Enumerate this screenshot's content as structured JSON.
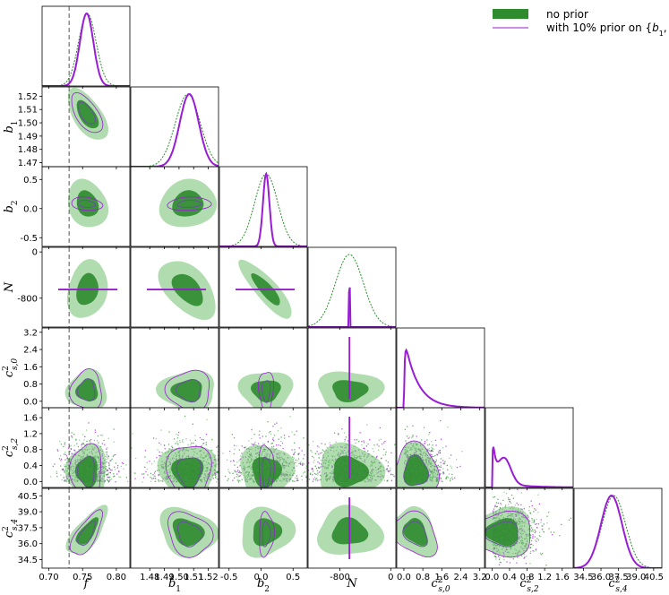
{
  "chart_data": {
    "type": "corner",
    "title": "",
    "parameters": [
      {
        "label": "f",
        "range": [
          0.69,
          0.82
        ],
        "ticks": [
          0.7,
          0.75,
          0.8
        ],
        "tick_labels": [
          "0.70",
          "0.75",
          "0.80"
        ],
        "mean": 0.757,
        "sd": 0.013,
        "prior_mean": 0.756,
        "prior_sd": 0.01
      },
      {
        "label": "b1",
        "range": [
          1.467,
          1.527
        ],
        "ticks": [
          1.47,
          1.48,
          1.49,
          1.5,
          1.51,
          1.52
        ],
        "x_tick_labels": [
          "1.48",
          "1.49",
          "1.50",
          "1.51",
          "1.52"
        ],
        "x_ticks": [
          1.48,
          1.49,
          1.5,
          1.51,
          1.52
        ],
        "y_ticks": [
          1.47,
          1.48,
          1.49,
          1.5,
          1.51,
          1.52
        ],
        "y_tick_labels": [
          "1.47",
          "1.48",
          "1.49",
          "1.50",
          "1.51",
          "1.52"
        ],
        "mean": 1.506,
        "sd": 0.0085,
        "prior_mean": 1.507,
        "prior_sd": 0.0065
      },
      {
        "label": "b2",
        "range": [
          -0.65,
          0.72
        ],
        "ticks": [
          -0.5,
          0.0,
          0.5
        ],
        "tick_labels": [
          "-0.5",
          "0.0",
          "0.5"
        ],
        "mean": 0.08,
        "sd": 0.18,
        "prior_mean": 0.08,
        "prior_sd": 0.05
      },
      {
        "label": "N",
        "range": [
          -1300,
          80
        ],
        "ticks": [
          -800,
          0
        ],
        "tick_labels": [
          "-800",
          "0"
        ],
        "mean": -650,
        "sd": 220,
        "prior_mean": -650,
        "prior_sd": 5
      },
      {
        "label": "c2s0",
        "range": [
          -0.3,
          3.4
        ],
        "ticks": [
          0.0,
          0.8,
          1.6,
          2.4,
          3.2
        ],
        "tick_labels": [
          "0.0",
          "0.8",
          "1.6",
          "2.4",
          "3.2"
        ],
        "mean": 0.5,
        "sd": 0.4
      },
      {
        "label": "c2s2",
        "range": [
          -0.15,
          1.85
        ],
        "ticks": [
          0.0,
          0.4,
          0.8,
          1.2,
          1.6
        ],
        "tick_labels": [
          "0.0",
          "0.4",
          "0.8",
          "1.2",
          "1.6"
        ],
        "mean": 0.25,
        "sd": 0.3
      },
      {
        "label": "c2s4",
        "range": [
          33.7,
          41.2
        ],
        "x_ticks": [
          34.5,
          36.0,
          37.5,
          39.0,
          40.5
        ],
        "x_tick_labels": [
          "34.5",
          "36.0",
          "37.5",
          "39.0",
          "40.5"
        ],
        "y_ticks": [
          34.5,
          36.0,
          37.5,
          39.0,
          40.5
        ],
        "y_tick_labels": [
          "34.5",
          "36.0",
          "37.5",
          "39.0",
          "40.5"
        ],
        "mean": 37.1,
        "sd": 1.0,
        "prior_mean": 36.9,
        "prior_sd": 0.9
      }
    ],
    "axis_labels": [
      "f",
      "b1",
      "b2",
      "N",
      "c2s,0",
      "c2s,2",
      "c2s,4"
    ],
    "reference_line": {
      "parameter": "f",
      "value": 0.73
    },
    "series": [
      {
        "name": "no prior",
        "color": "#2e8b2e",
        "fill": "#6fbf6f"
      },
      {
        "name": "with 10% prior on {b1, N}",
        "color": "#9a1cd4"
      }
    ],
    "legend": "top-right",
    "grid": false
  }
}
